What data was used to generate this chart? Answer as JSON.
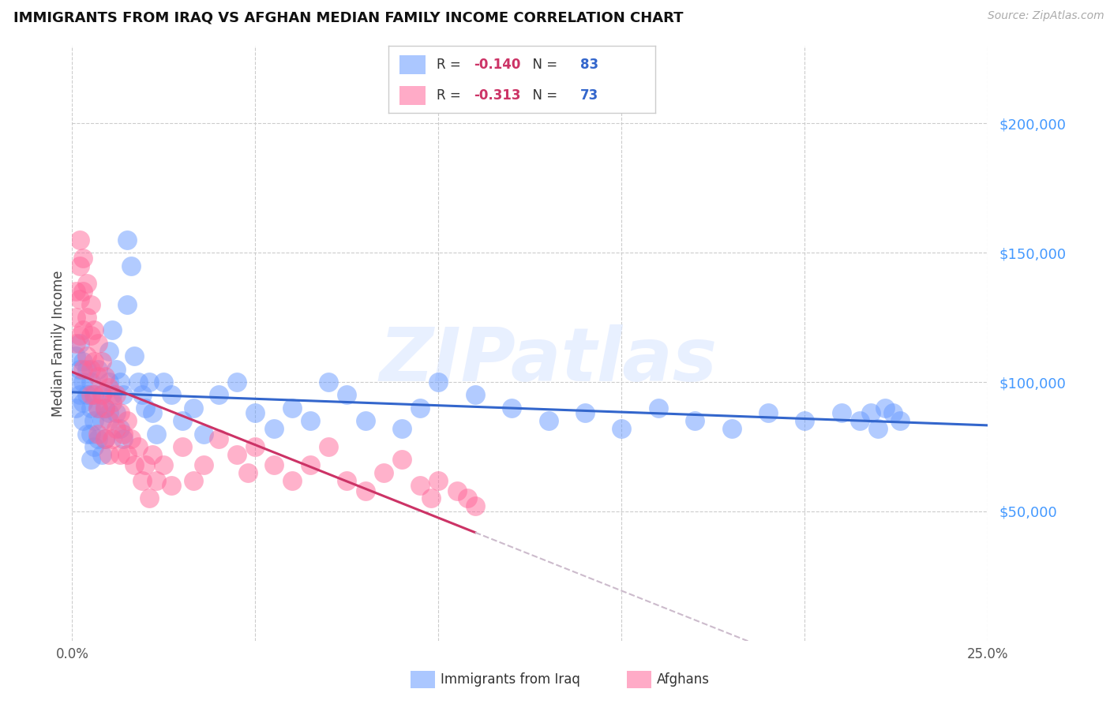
{
  "title": "IMMIGRANTS FROM IRAQ VS AFGHAN MEDIAN FAMILY INCOME CORRELATION CHART",
  "source": "Source: ZipAtlas.com",
  "ylabel": "Median Family Income",
  "xlim": [
    0.0,
    0.25
  ],
  "ylim": [
    0,
    230000
  ],
  "iraq_R": "-0.140",
  "iraq_N": "83",
  "afghan_R": "-0.313",
  "afghan_N": "73",
  "legend_label_iraq": "Immigrants from Iraq",
  "legend_label_afghan": "Afghans",
  "iraq_color": "#6699ff",
  "afghan_color": "#ff6699",
  "trendline_iraq_color": "#3366cc",
  "trendline_afghan_color": "#cc3366",
  "trendline_dashed_color": "#ccbbcc",
  "watermark": "ZIPatlas",
  "right_yticks": [
    50000,
    100000,
    150000,
    200000
  ],
  "right_yticklabels": [
    "$50,000",
    "$100,000",
    "$150,000",
    "$200,000"
  ],
  "iraq_x": [
    0.001,
    0.001,
    0.001,
    0.002,
    0.002,
    0.002,
    0.003,
    0.003,
    0.003,
    0.003,
    0.004,
    0.004,
    0.004,
    0.005,
    0.005,
    0.005,
    0.005,
    0.006,
    0.006,
    0.006,
    0.007,
    0.007,
    0.007,
    0.008,
    0.008,
    0.008,
    0.009,
    0.009,
    0.01,
    0.01,
    0.01,
    0.011,
    0.011,
    0.012,
    0.012,
    0.013,
    0.013,
    0.014,
    0.014,
    0.015,
    0.015,
    0.016,
    0.017,
    0.018,
    0.019,
    0.02,
    0.021,
    0.022,
    0.023,
    0.025,
    0.027,
    0.03,
    0.033,
    0.036,
    0.04,
    0.045,
    0.05,
    0.055,
    0.06,
    0.065,
    0.07,
    0.075,
    0.08,
    0.09,
    0.095,
    0.1,
    0.11,
    0.12,
    0.13,
    0.14,
    0.15,
    0.16,
    0.17,
    0.18,
    0.19,
    0.2,
    0.21,
    0.215,
    0.218,
    0.22,
    0.222,
    0.224,
    0.226
  ],
  "iraq_y": [
    110000,
    100000,
    90000,
    115000,
    105000,
    95000,
    108000,
    100000,
    92000,
    85000,
    105000,
    95000,
    80000,
    100000,
    90000,
    80000,
    70000,
    95000,
    85000,
    75000,
    105000,
    90000,
    78000,
    95000,
    85000,
    72000,
    90000,
    78000,
    112000,
    100000,
    88000,
    120000,
    95000,
    105000,
    88000,
    100000,
    82000,
    95000,
    78000,
    155000,
    130000,
    145000,
    110000,
    100000,
    95000,
    90000,
    100000,
    88000,
    80000,
    100000,
    95000,
    85000,
    90000,
    80000,
    95000,
    100000,
    88000,
    82000,
    90000,
    85000,
    100000,
    95000,
    85000,
    82000,
    90000,
    100000,
    95000,
    90000,
    85000,
    88000,
    82000,
    90000,
    85000,
    82000,
    88000,
    85000,
    88000,
    85000,
    88000,
    82000,
    90000,
    88000,
    85000
  ],
  "afghan_x": [
    0.001,
    0.001,
    0.001,
    0.002,
    0.002,
    0.002,
    0.002,
    0.003,
    0.003,
    0.003,
    0.003,
    0.004,
    0.004,
    0.004,
    0.005,
    0.005,
    0.005,
    0.005,
    0.006,
    0.006,
    0.006,
    0.007,
    0.007,
    0.007,
    0.007,
    0.008,
    0.008,
    0.009,
    0.009,
    0.009,
    0.01,
    0.01,
    0.01,
    0.011,
    0.011,
    0.012,
    0.012,
    0.013,
    0.013,
    0.014,
    0.015,
    0.015,
    0.016,
    0.017,
    0.018,
    0.019,
    0.02,
    0.021,
    0.022,
    0.023,
    0.025,
    0.027,
    0.03,
    0.033,
    0.036,
    0.04,
    0.045,
    0.048,
    0.05,
    0.055,
    0.06,
    0.065,
    0.07,
    0.075,
    0.08,
    0.085,
    0.09,
    0.095,
    0.098,
    0.1,
    0.105,
    0.108,
    0.11
  ],
  "afghan_y": [
    135000,
    125000,
    115000,
    155000,
    145000,
    132000,
    118000,
    148000,
    135000,
    120000,
    105000,
    138000,
    125000,
    110000,
    130000,
    118000,
    105000,
    95000,
    120000,
    108000,
    95000,
    115000,
    102000,
    90000,
    80000,
    108000,
    95000,
    102000,
    90000,
    78000,
    98000,
    85000,
    72000,
    92000,
    78000,
    95000,
    82000,
    88000,
    72000,
    80000,
    85000,
    72000,
    78000,
    68000,
    75000,
    62000,
    68000,
    55000,
    72000,
    62000,
    68000,
    60000,
    75000,
    62000,
    68000,
    78000,
    72000,
    65000,
    75000,
    68000,
    62000,
    68000,
    75000,
    62000,
    58000,
    65000,
    70000,
    60000,
    55000,
    62000,
    58000,
    55000,
    52000
  ],
  "afghan_trendline_end_x": 0.11
}
